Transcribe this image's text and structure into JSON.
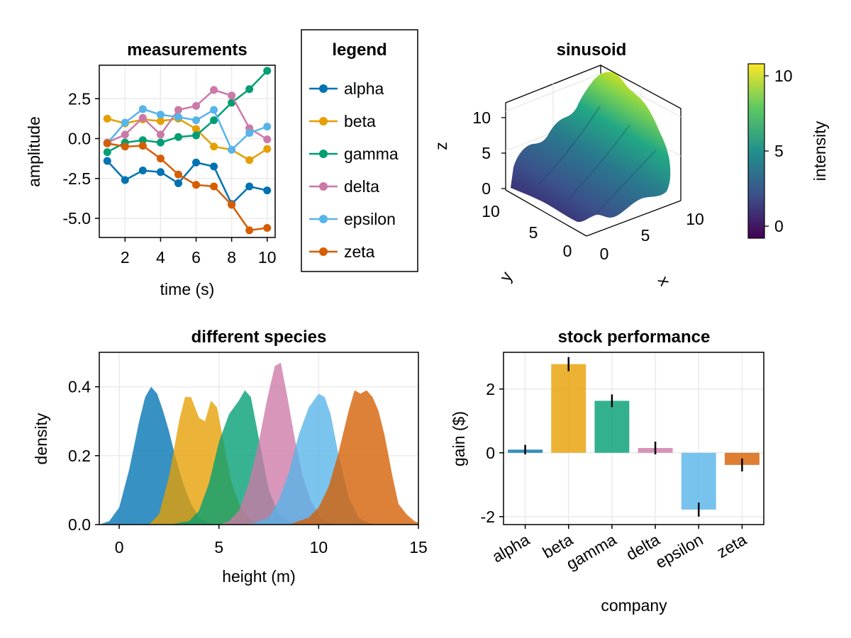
{
  "colors": {
    "alpha": "#0072b2",
    "beta": "#e69f00",
    "gamma": "#009e73",
    "delta": "#cc79a7",
    "epsilon": "#56b4e9",
    "zeta": "#d55e00"
  },
  "chart_data": [
    {
      "id": "measurements",
      "type": "line",
      "title": "measurements",
      "xlabel": "time (s)",
      "ylabel": "amplitude",
      "xlim": [
        0.55,
        10.45
      ],
      "ylim": [
        -6.2,
        4.6
      ],
      "xticks": [
        2,
        4,
        6,
        8,
        10
      ],
      "yticks": [
        2.5,
        0.0,
        -2.5,
        -5.0
      ],
      "ytick_labels": [
        "2.5",
        "0.0",
        "-2.5",
        "-5.0"
      ],
      "x": [
        1,
        2,
        3,
        4,
        5,
        6,
        7,
        8,
        9,
        10
      ],
      "grid": true,
      "series": [
        {
          "name": "alpha",
          "values": [
            -1.4,
            -2.6,
            -2.0,
            -2.1,
            -2.8,
            -1.5,
            -1.75,
            -4.1,
            -3.0,
            -3.25
          ]
        },
        {
          "name": "beta",
          "values": [
            1.25,
            0.95,
            1.2,
            1.1,
            1.25,
            0.6,
            -0.5,
            -0.7,
            -1.35,
            -0.65
          ]
        },
        {
          "name": "gamma",
          "values": [
            -0.85,
            -0.25,
            -0.1,
            -0.25,
            0.1,
            0.2,
            1.15,
            2.25,
            3.1,
            4.25
          ]
        },
        {
          "name": "delta",
          "values": [
            -0.25,
            0.25,
            1.3,
            0.25,
            1.8,
            2.05,
            3.05,
            2.7,
            0.65,
            -0.05
          ]
        },
        {
          "name": "epsilon",
          "values": [
            -0.3,
            1.0,
            1.85,
            1.5,
            1.35,
            1.15,
            1.8,
            -0.7,
            0.35,
            0.75
          ]
        },
        {
          "name": "zeta",
          "values": [
            -0.3,
            -0.5,
            -0.45,
            -1.25,
            -2.25,
            -2.9,
            -3.0,
            -4.15,
            -5.75,
            -5.6
          ]
        }
      ]
    },
    {
      "id": "legend",
      "type": "legend",
      "title": "legend",
      "entries": [
        "alpha",
        "beta",
        "gamma",
        "delta",
        "epsilon",
        "zeta"
      ]
    },
    {
      "id": "sinusoid",
      "type": "surface",
      "title": "sinusoid",
      "xlabel": "x",
      "ylabel": "y",
      "zlabel": "z",
      "xlim": [
        0,
        12
      ],
      "ylim": [
        0,
        12
      ],
      "zlim": [
        -0.8,
        11
      ],
      "xticks": [
        0,
        5,
        10
      ],
      "yticks": [
        0,
        5,
        10
      ],
      "zticks": [
        0,
        5,
        10
      ],
      "colorbar": {
        "label": "intensity",
        "range": [
          -0.8,
          10.8
        ],
        "ticks": [
          0,
          5,
          10
        ]
      }
    },
    {
      "id": "species",
      "type": "area",
      "title": "different species",
      "xlabel": "height (m)",
      "ylabel": "density",
      "xlim": [
        -1,
        15
      ],
      "ylim": [
        0,
        0.5
      ],
      "xticks": [
        0,
        5,
        10,
        15
      ],
      "yticks": [
        0.0,
        0.2,
        0.4
      ],
      "ytick_labels": [
        "0.0",
        "0.2",
        "0.4"
      ],
      "grid": true,
      "series": [
        {
          "name": "alpha",
          "x": [
            -1,
            -0.5,
            0,
            0.5,
            1,
            1.3,
            1.6,
            1.9,
            2.2,
            2.5,
            2.8,
            3.2,
            3.6,
            4,
            4.5,
            5
          ],
          "values": [
            0,
            0.01,
            0.05,
            0.16,
            0.3,
            0.37,
            0.4,
            0.38,
            0.33,
            0.27,
            0.2,
            0.12,
            0.06,
            0.02,
            0.005,
            0
          ]
        },
        {
          "name": "beta",
          "x": [
            1.5,
            2,
            2.5,
            3,
            3.3,
            3.6,
            4,
            4.3,
            4.6,
            4.9,
            5.2,
            5.6,
            6,
            6.5,
            7
          ],
          "values": [
            0,
            0.03,
            0.14,
            0.3,
            0.37,
            0.37,
            0.31,
            0.3,
            0.36,
            0.34,
            0.25,
            0.13,
            0.06,
            0.02,
            0
          ]
        },
        {
          "name": "gamma",
          "x": [
            2.5,
            3.5,
            4,
            4.5,
            5,
            5.5,
            6,
            6.3,
            6.6,
            7,
            7.5,
            8,
            8.5,
            9
          ],
          "values": [
            0,
            0.01,
            0.04,
            0.12,
            0.24,
            0.32,
            0.36,
            0.39,
            0.37,
            0.25,
            0.1,
            0.03,
            0.01,
            0
          ]
        },
        {
          "name": "delta",
          "x": [
            5,
            5.5,
            6,
            6.5,
            7,
            7.4,
            7.8,
            8.1,
            8.4,
            8.8,
            9.2,
            9.6,
            10.1,
            10.6,
            11
          ],
          "values": [
            0,
            0.01,
            0.04,
            0.12,
            0.24,
            0.36,
            0.46,
            0.47,
            0.38,
            0.25,
            0.14,
            0.07,
            0.02,
            0.005,
            0
          ]
        },
        {
          "name": "epsilon",
          "x": [
            6.5,
            7.5,
            8,
            8.5,
            9,
            9.5,
            10,
            10.3,
            10.6,
            11,
            11.5,
            12,
            12.5,
            13
          ],
          "values": [
            0,
            0.02,
            0.07,
            0.15,
            0.26,
            0.34,
            0.38,
            0.37,
            0.32,
            0.2,
            0.08,
            0.02,
            0.005,
            0
          ]
        },
        {
          "name": "zeta",
          "x": [
            8.5,
            9.5,
            10,
            10.5,
            11,
            11.5,
            11.8,
            12.1,
            12.4,
            12.7,
            13,
            13.3,
            13.7,
            14,
            14.4,
            14.8,
            15
          ],
          "values": [
            0,
            0.02,
            0.05,
            0.11,
            0.21,
            0.33,
            0.39,
            0.38,
            0.39,
            0.37,
            0.33,
            0.26,
            0.14,
            0.06,
            0.03,
            0.01,
            0.005
          ]
        }
      ]
    },
    {
      "id": "stocks",
      "type": "bar",
      "title": "stock performance",
      "xlabel": "company",
      "ylabel": "gain ($)",
      "categories": [
        "alpha",
        "beta",
        "gamma",
        "delta",
        "epsilon",
        "zeta"
      ],
      "values": [
        0.1,
        2.78,
        1.63,
        0.15,
        -1.78,
        -0.38
      ],
      "errors": [
        0.15,
        0.22,
        0.2,
        0.2,
        0.22,
        0.2
      ],
      "ylim": [
        -2.25,
        3.15
      ],
      "yticks": [
        2,
        0,
        -2
      ],
      "ytick_labels": [
        "2",
        "0",
        "-2"
      ],
      "grid": true
    }
  ]
}
